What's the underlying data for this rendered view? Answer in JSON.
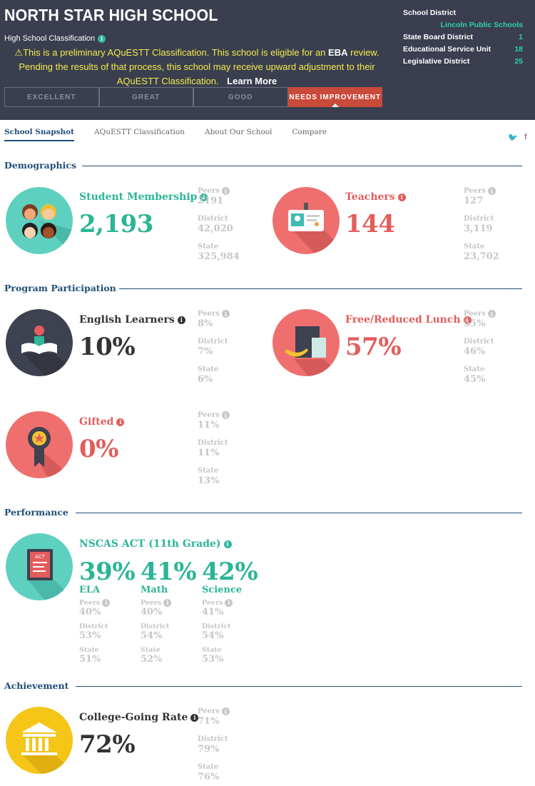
{
  "header": {
    "school_name": "NORTH STAR HIGH SCHOOL",
    "classification_label": "High School Classification",
    "prelim_part1": "This is a preliminary AQuESTT Classification. This school is eligible for an",
    "prelim_eba": "EBA",
    "prelim_part2": "review. Pending the results of that process, this school may receive upward adjustment to their AQuESTT Classification.",
    "learn_more": "Learn More",
    "classifications": [
      "EXCELLENT",
      "GREAT",
      "GOOD",
      "NEEDS IMPROVEMENT"
    ],
    "active_classification": "NEEDS IMPROVEMENT",
    "school_district_label": "School District",
    "school_district": "Lincoln Public Schools",
    "state_board_label": "State Board District",
    "state_board": "1",
    "esu_label": "Educational Service Unit",
    "esu": "18",
    "legislative_label": "Legislative District",
    "legislative": "25"
  },
  "tabs": [
    "School Snapshot",
    "AQuESTT Classification",
    "About Our School",
    "Compare"
  ],
  "social": {
    "twitter": "twitter-icon",
    "facebook": "facebook-icon"
  },
  "labels": {
    "peers": "Peers",
    "district": "District",
    "state": "State"
  },
  "demographics": {
    "title": "Demographics",
    "membership": {
      "title": "Student Membership",
      "value": "2,193",
      "peers": "2191",
      "district": "42,020",
      "state": "325,984"
    },
    "teachers": {
      "title": "Teachers",
      "value": "144",
      "peers": "127",
      "district": "3,119",
      "state": "23,702"
    }
  },
  "program": {
    "title": "Program Participation",
    "ell": {
      "title": "English Learners",
      "value": "10%",
      "peers": "8%",
      "district": "7%",
      "state": "6%"
    },
    "lunch": {
      "title": "Free/Reduced Lunch",
      "value": "57%",
      "peers": "55%",
      "district": "46%",
      "state": "45%"
    },
    "gifted": {
      "title": "Gifted",
      "value": "0%",
      "peers": "11%",
      "district": "11%",
      "state": "13%"
    }
  },
  "performance": {
    "title": "Performance",
    "act": {
      "title": "NSCAS ACT (11th Grade)",
      "icon_label": "ACT"
    },
    "ela": {
      "value": "39%",
      "label": "ELA",
      "peers": "40%",
      "district": "53%",
      "state": "51%"
    },
    "math": {
      "value": "41%",
      "label": "Math",
      "peers": "40%",
      "district": "54%",
      "state": "52%"
    },
    "science": {
      "value": "42%",
      "label": "Science",
      "peers": "41%",
      "district": "54%",
      "state": "53%"
    }
  },
  "achievement": {
    "title": "Achievement",
    "college": {
      "title": "College-Going Rate",
      "value": "72%",
      "peers": "71%",
      "district": "79%",
      "state": "76%"
    }
  },
  "colors": {
    "teal": "#2bb596",
    "red": "#e35d5d",
    "navy": "#1f4e79",
    "header_bg": "#3a3e4f",
    "yellow": "#f2ec4a"
  }
}
